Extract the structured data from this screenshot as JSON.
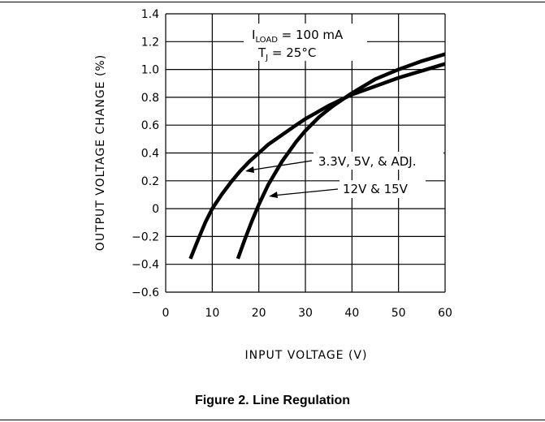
{
  "caption": "Figure 2. Line Regulation",
  "chart_data": {
    "type": "line",
    "title": "",
    "xlabel": "INPUT VOLTAGE (V)",
    "ylabel": "OUTPUT VOLTAGE CHANGE (%)",
    "xlim": [
      0,
      60
    ],
    "ylim": [
      -0.6,
      1.4
    ],
    "x_ticks": [
      "0",
      "10",
      "20",
      "30",
      "40",
      "50",
      "60"
    ],
    "y_ticks": [
      "1.4",
      "1.2",
      "1.0",
      "0.8",
      "0.6",
      "0.4",
      "0.2",
      "0",
      "-0.2",
      "-0.4",
      "-0.6"
    ],
    "grid": true,
    "conditions": {
      "load_prefix": "I",
      "load_sub": "LOAD",
      "load_value": " = 100 mA",
      "temp_prefix": "T",
      "temp_sub": "J",
      "temp_value": " = 25°C"
    },
    "series": [
      {
        "name": "3.3V, 5V, & ADJ.",
        "x": [
          5.3,
          7,
          8.5,
          10,
          12,
          14,
          16,
          18,
          20,
          22,
          25,
          28,
          30,
          35,
          40,
          45,
          50,
          55,
          60
        ],
        "y": [
          -0.36,
          -0.22,
          -0.1,
          0.0,
          0.1,
          0.19,
          0.27,
          0.34,
          0.4,
          0.46,
          0.53,
          0.6,
          0.645,
          0.74,
          0.82,
          0.88,
          0.94,
          0.99,
          1.04
        ]
      },
      {
        "name": "12V & 15V",
        "x": [
          15.5,
          17,
          18.5,
          20,
          22,
          25,
          28,
          30,
          33,
          36,
          40,
          45,
          50,
          55,
          60
        ],
        "y": [
          -0.36,
          -0.22,
          -0.09,
          0.03,
          0.17,
          0.34,
          0.48,
          0.56,
          0.66,
          0.74,
          0.83,
          0.93,
          1.0,
          1.06,
          1.11
        ]
      }
    ]
  }
}
